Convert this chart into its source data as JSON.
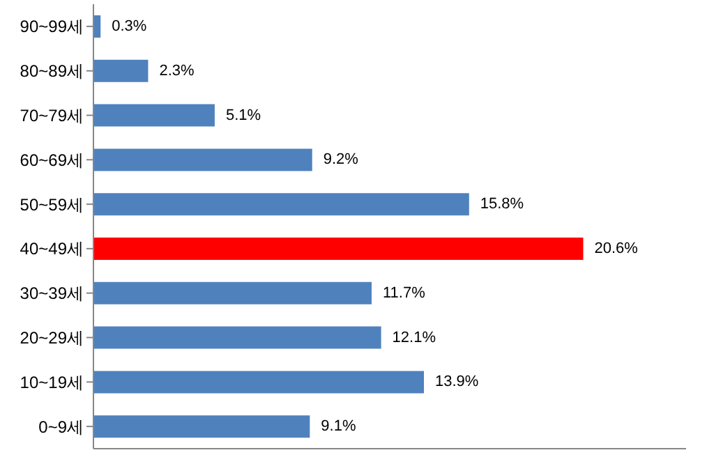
{
  "chart_data": {
    "type": "bar",
    "orientation": "horizontal",
    "categories": [
      "90~99세",
      "80~89세",
      "70~79세",
      "60~69세",
      "50~59세",
      "40~49세",
      "30~39세",
      "20~29세",
      "10~19세",
      "0~9세"
    ],
    "values": [
      0.3,
      2.3,
      5.1,
      9.2,
      15.8,
      20.6,
      11.7,
      12.1,
      13.9,
      9.1
    ],
    "value_labels": [
      "0.3%",
      "2.3%",
      "5.1%",
      "9.2%",
      "15.8%",
      "20.6%",
      "11.7%",
      "12.1%",
      "13.9%",
      "9.1%"
    ],
    "colors": [
      "#4f81bd",
      "#4f81bd",
      "#4f81bd",
      "#4f81bd",
      "#4f81bd",
      "#ff0000",
      "#4f81bd",
      "#4f81bd",
      "#4f81bd",
      "#4f81bd"
    ],
    "tick_labels": "y",
    "grid": false,
    "legend": false
  }
}
